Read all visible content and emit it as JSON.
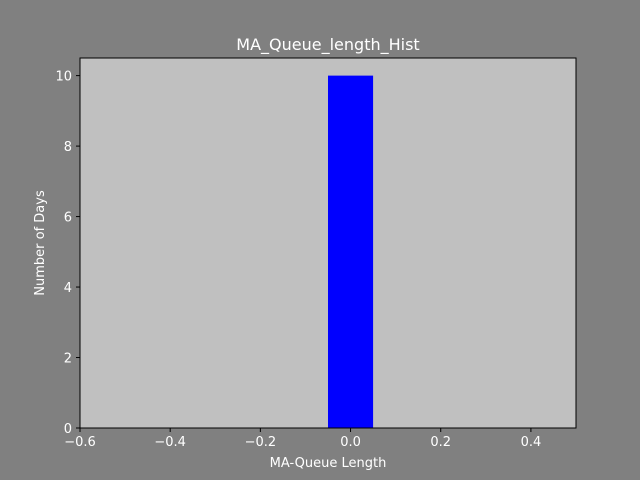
{
  "chart_data": {
    "type": "bar",
    "title": "MA_Queue_length_Hist",
    "xlabel": "MA-Queue Length",
    "ylabel": "Number of Days",
    "xlim": [
      -0.6,
      0.5
    ],
    "ylim": [
      0,
      10.5
    ],
    "x_ticks": [
      "−0.6",
      "−0.4",
      "−0.2",
      "0.0",
      "0.2",
      "0.4"
    ],
    "x_tick_values": [
      -0.6,
      -0.4,
      -0.2,
      0.0,
      0.2,
      0.4
    ],
    "y_ticks": [
      "0",
      "2",
      "4",
      "6",
      "8",
      "10"
    ],
    "y_tick_values": [
      0,
      2,
      4,
      6,
      8,
      10
    ],
    "bins": [
      {
        "start": -0.05,
        "end": 0.05,
        "count": 10
      }
    ],
    "grid": false,
    "colors": {
      "figure_bg": "#808080",
      "axes_bg": "#c0c0c0",
      "bar": "#0000ff",
      "text": "#ffffff",
      "spine": "#000000"
    }
  }
}
